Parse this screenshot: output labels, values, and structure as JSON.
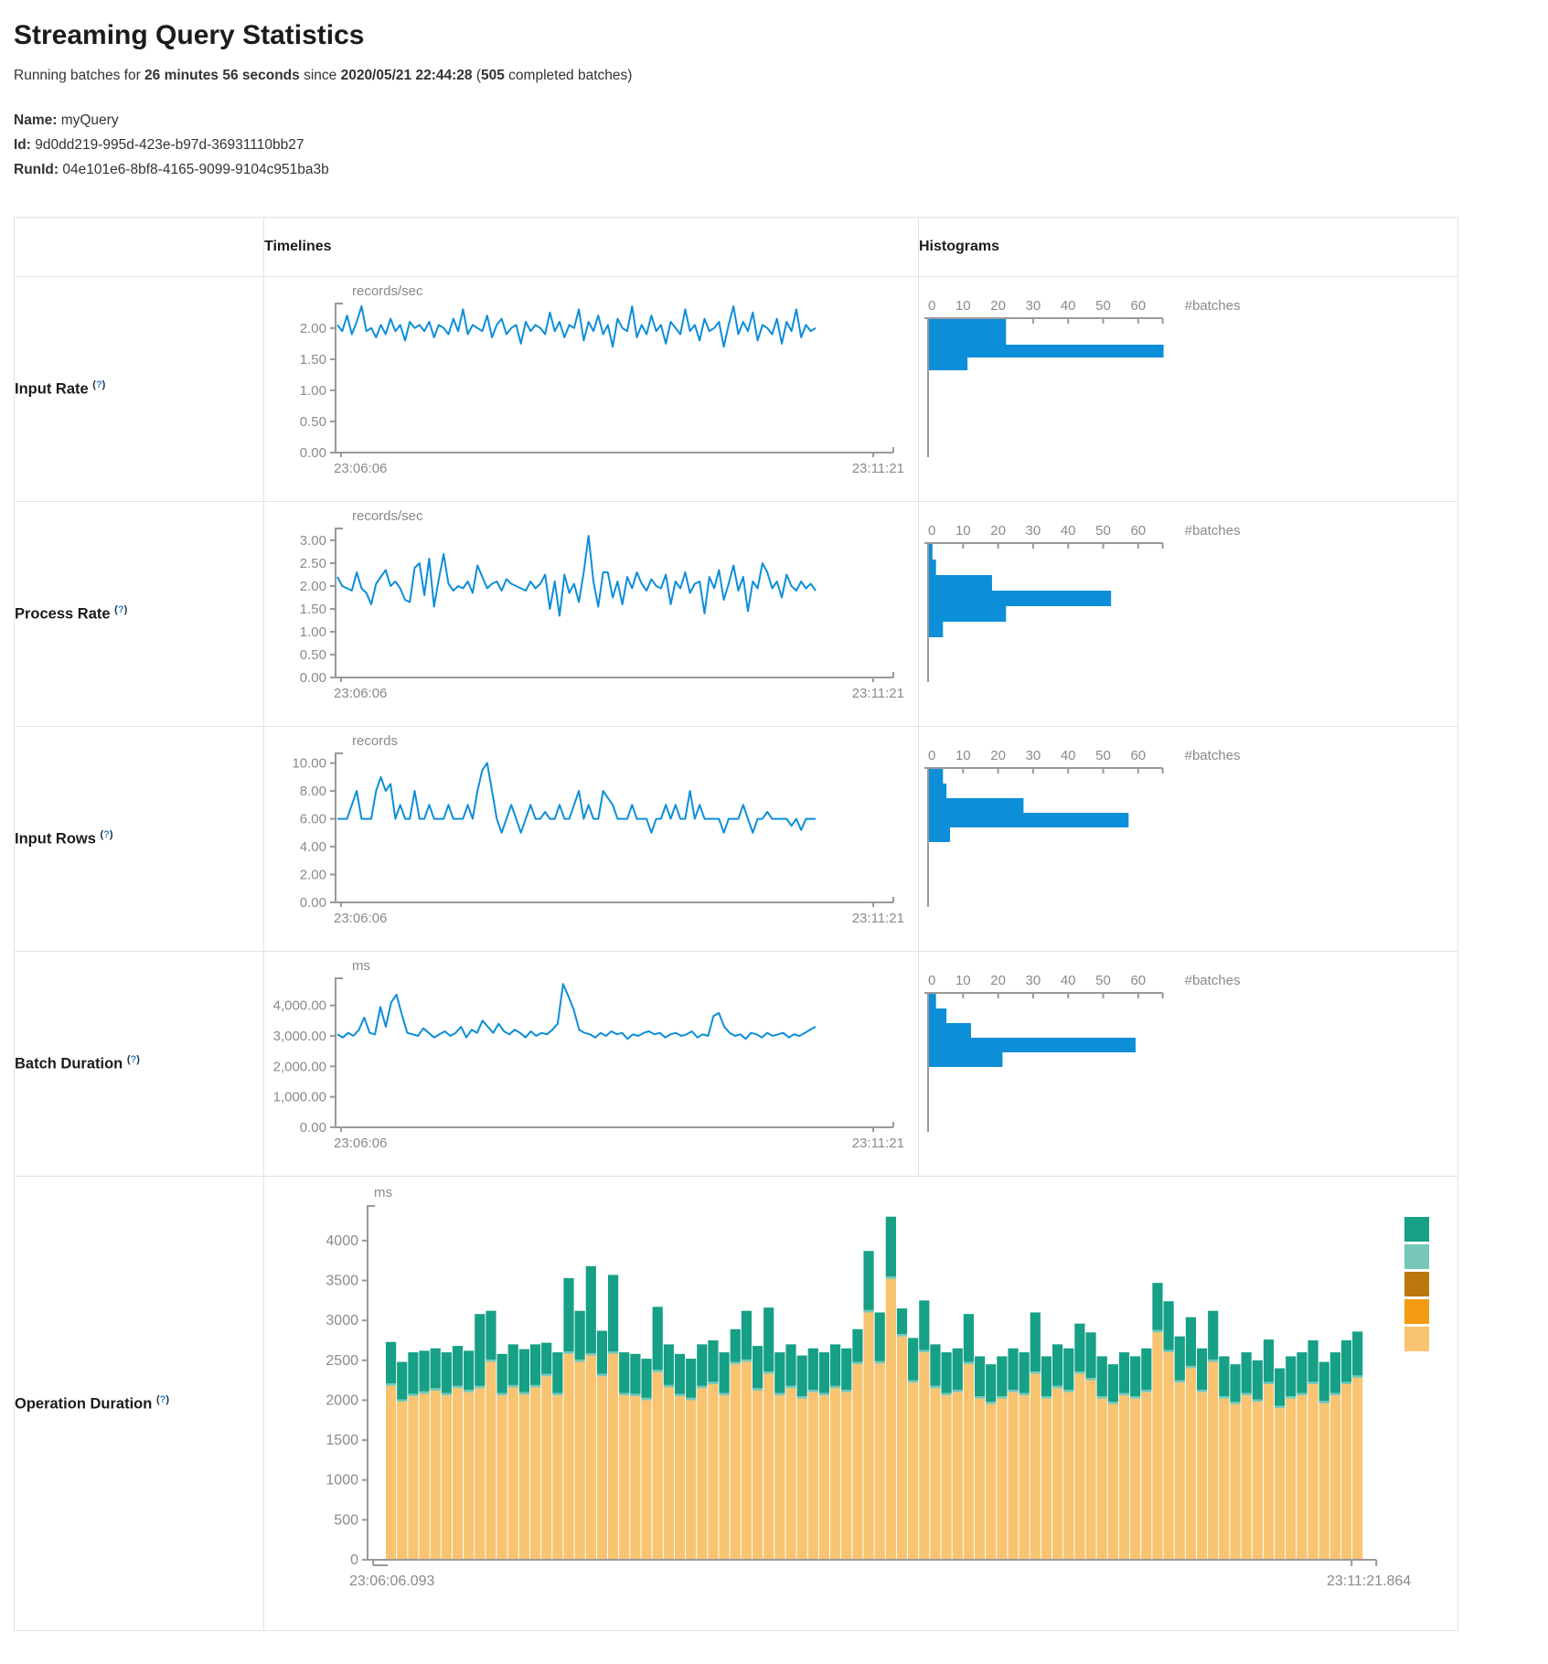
{
  "page": {
    "title": "Streaming Query Statistics",
    "subtitle_segments": [
      [
        "Running batches for ",
        false
      ],
      [
        "26 minutes 56 seconds",
        true
      ],
      [
        " since ",
        false
      ],
      [
        "2020/05/21 22:44:28",
        true
      ],
      [
        " (",
        false
      ],
      [
        "505",
        true
      ],
      [
        " completed batches)",
        false
      ]
    ],
    "info": {
      "name_label": "Name:",
      "name_value": "myQuery",
      "id_label": "Id:",
      "id_value": "9d0dd219-995d-423e-b97d-36931110bb27",
      "runid_label": "RunId:",
      "runid_value": "04e101e6-8bf8-4165-9099-9104c951ba3b"
    }
  },
  "table": {
    "col_timelines": "Timelines",
    "col_histograms": "Histograms",
    "help_open": "(",
    "help_q": "?",
    "help_close": ")",
    "rows": [
      {
        "label": "Input Rate"
      },
      {
        "label": "Process Rate"
      },
      {
        "label": "Input Rows"
      },
      {
        "label": "Batch Duration"
      },
      {
        "label": "Operation Duration"
      }
    ]
  },
  "colors": {
    "line_blue": "#0d8ed9",
    "bar_blue": "#0d8ed9",
    "axis_gray": "#999999",
    "tick_text": "#8a8a8a",
    "help_blue": "#2e86d1",
    "legend": [
      "#16a085",
      "#76c7b7",
      "#b9770e",
      "#f39c12",
      "#f8c471"
    ],
    "stack_base": "#f8c471",
    "stack_sliver": "#76c7b7",
    "stack_top": "#16a085"
  },
  "chart_data": [
    {
      "id": "input_rate_timeline",
      "type": "line",
      "title": "Input Rate timeline",
      "ylabel": "records/sec",
      "x_start_label": "23:06:06",
      "x_end_label": "23:11:21",
      "ymax": 2.35,
      "yticks": [
        2,
        1.5,
        1,
        0.5,
        0
      ],
      "ytick_labels": [
        "2.00",
        "1.50",
        "1.00",
        "0.50",
        "0.00"
      ],
      "values": [
        2.05,
        1.95,
        2.2,
        1.9,
        2.1,
        2.35,
        1.95,
        2.0,
        1.85,
        2.05,
        1.9,
        2.15,
        1.95,
        2.05,
        1.8,
        2.1,
        2.0,
        2.05,
        1.95,
        2.1,
        1.85,
        2.05,
        2.0,
        1.9,
        2.15,
        1.95,
        2.3,
        1.9,
        2.05,
        2.0,
        1.95,
        2.2,
        1.85,
        2.05,
        2.15,
        1.9,
        2.0,
        2.05,
        1.75,
        2.1,
        1.95,
        2.05,
        2.0,
        1.9,
        2.25,
        1.95,
        2.1,
        1.85,
        2.05,
        2.0,
        2.3,
        1.8,
        2.1,
        1.95,
        2.2,
        1.9,
        2.05,
        1.7,
        2.15,
        2.0,
        1.95,
        2.35,
        1.85,
        2.05,
        1.9,
        2.2,
        1.95,
        2.05,
        1.75,
        2.1,
        2.0,
        1.9,
        2.3,
        1.95,
        2.05,
        1.8,
        2.15,
        1.95,
        2.0,
        2.1,
        1.7,
        2.05,
        2.35,
        1.9,
        2.1,
        1.95,
        2.25,
        1.8,
        2.05,
        2.0,
        1.9,
        2.15,
        1.75,
        2.1,
        1.95,
        2.3,
        1.85,
        2.05,
        1.95,
        2.0
      ]
    },
    {
      "id": "input_rate_histogram",
      "type": "bar",
      "orientation": "horizontal",
      "title": "Input Rate histogram",
      "xlabel": "#batches",
      "xticks": [
        0,
        10,
        20,
        30,
        40,
        50,
        60
      ],
      "xmax": 67,
      "counts": [
        22,
        67,
        11
      ],
      "bin_heights": [
        28,
        14,
        14
      ]
    },
    {
      "id": "process_rate_timeline",
      "type": "line",
      "title": "Process Rate timeline",
      "ylabel": "records/sec",
      "x_start_label": "23:06:06",
      "x_end_label": "23:11:21",
      "ymax": 3.2,
      "yticks": [
        3,
        2.5,
        2,
        1.5,
        1,
        0.5,
        0
      ],
      "ytick_labels": [
        "3.00",
        "2.50",
        "2.00",
        "1.50",
        "1.00",
        "0.50",
        "0.00"
      ],
      "values": [
        2.2,
        2.0,
        1.95,
        1.9,
        2.3,
        1.95,
        1.85,
        1.6,
        2.05,
        2.2,
        2.35,
        2.0,
        2.1,
        1.95,
        1.7,
        1.65,
        2.4,
        2.5,
        1.8,
        2.6,
        1.55,
        2.15,
        2.7,
        2.05,
        1.9,
        2.0,
        1.95,
        2.1,
        1.85,
        2.45,
        2.2,
        1.95,
        2.05,
        2.1,
        1.9,
        2.15,
        2.05,
        2.0,
        1.95,
        1.9,
        2.1,
        1.95,
        2.05,
        2.25,
        1.5,
        2.1,
        1.35,
        2.25,
        1.85,
        2.05,
        1.65,
        2.3,
        3.1,
        2.1,
        1.55,
        2.3,
        2.3,
        1.75,
        2.1,
        1.6,
        2.2,
        1.95,
        2.3,
        2.05,
        1.9,
        2.15,
        2.0,
        1.95,
        2.25,
        1.6,
        2.1,
        1.95,
        2.3,
        1.85,
        2.05,
        2.1,
        1.4,
        2.2,
        1.95,
        2.35,
        1.7,
        2.05,
        2.45,
        1.9,
        2.2,
        1.45,
        2.1,
        1.95,
        2.5,
        2.3,
        1.95,
        2.1,
        1.75,
        2.25,
        2.0,
        1.9,
        2.1,
        1.95,
        2.05,
        1.9
      ]
    },
    {
      "id": "process_rate_histogram",
      "type": "bar",
      "orientation": "horizontal",
      "title": "Process Rate histogram",
      "xlabel": "#batches",
      "xticks": [
        0,
        10,
        20,
        30,
        40,
        50,
        60
      ],
      "xmax": 67,
      "counts": [
        1,
        2,
        18,
        52,
        22,
        4
      ],
      "bin_heights": [
        17,
        17,
        17,
        17,
        17,
        17
      ]
    },
    {
      "id": "input_rows_timeline",
      "type": "line",
      "title": "Input Rows timeline",
      "ylabel": "records",
      "x_start_label": "23:06:06",
      "x_end_label": "23:11:21",
      "ymax": 10.5,
      "yticks": [
        10,
        8,
        6,
        4,
        2,
        0
      ],
      "ytick_labels": [
        "10.00",
        "8.00",
        "6.00",
        "4.00",
        "2.00",
        "0.00"
      ],
      "values": [
        6,
        6,
        6,
        7,
        8,
        6,
        6,
        6,
        8,
        9,
        8,
        8.5,
        6,
        7,
        6,
        6,
        8,
        6,
        6,
        7,
        6,
        6,
        6,
        7,
        6,
        6,
        6,
        7,
        6,
        8,
        9.5,
        10,
        8,
        6,
        5,
        6,
        7,
        6,
        5,
        6,
        7,
        6,
        6,
        6.5,
        6,
        6,
        7,
        6,
        6,
        7,
        8,
        6,
        7,
        6,
        6,
        8,
        7.5,
        7,
        6,
        6,
        6,
        7,
        6,
        6,
        6,
        5,
        6,
        6,
        7,
        6,
        7,
        6,
        6,
        8,
        6,
        7,
        6,
        6,
        6,
        6,
        5,
        6,
        6,
        6,
        7,
        6,
        5,
        6,
        6,
        6.5,
        6,
        6,
        6,
        6,
        5.5,
        6,
        5.2,
        6,
        6,
        6
      ]
    },
    {
      "id": "input_rows_histogram",
      "type": "bar",
      "orientation": "horizontal",
      "title": "Input Rows histogram",
      "xlabel": "#batches",
      "xticks": [
        0,
        10,
        20,
        30,
        40,
        50,
        60
      ],
      "xmax": 67,
      "counts": [
        4,
        5,
        27,
        57,
        6
      ],
      "bin_heights": [
        16,
        16,
        16,
        16,
        16
      ]
    },
    {
      "id": "batch_duration_timeline",
      "type": "line",
      "title": "Batch Duration timeline",
      "ylabel": "ms",
      "x_start_label": "23:06:06",
      "x_end_label": "23:11:21",
      "ymax": 4800,
      "yticks": [
        4000,
        3000,
        2000,
        1000,
        0
      ],
      "ytick_labels": [
        "4,000.00",
        "3,000.00",
        "2,000.00",
        "1,000.00",
        "0.00"
      ],
      "values": [
        3050,
        2950,
        3100,
        3000,
        3200,
        3600,
        3100,
        3050,
        3950,
        3300,
        4100,
        4350,
        3700,
        3100,
        3050,
        3000,
        3250,
        3100,
        2950,
        3050,
        3150,
        3000,
        3100,
        3300,
        2950,
        3200,
        3100,
        3500,
        3300,
        3100,
        3400,
        3150,
        3050,
        3200,
        3100,
        2950,
        3150,
        3000,
        3100,
        3050,
        3200,
        3400,
        4700,
        4300,
        3850,
        3200,
        3100,
        3050,
        2950,
        3100,
        3000,
        3150,
        3050,
        3100,
        2900,
        3050,
        3000,
        3100,
        3150,
        3050,
        3100,
        2950,
        3050,
        3100,
        3000,
        3050,
        3150,
        2950,
        3050,
        3000,
        3650,
        3750,
        3300,
        3100,
        3000,
        3050,
        2900,
        3100,
        3050,
        2950,
        3100,
        3000,
        3050,
        3100,
        2950,
        3050,
        3000,
        3100,
        3200,
        3300
      ]
    },
    {
      "id": "batch_duration_histogram",
      "type": "bar",
      "orientation": "horizontal",
      "title": "Batch Duration histogram",
      "xlabel": "#batches",
      "xticks": [
        0,
        10,
        20,
        30,
        40,
        50,
        60
      ],
      "xmax": 67,
      "counts": [
        2,
        5,
        12,
        59,
        21
      ],
      "bin_heights": [
        16,
        16,
        16,
        16,
        16
      ]
    },
    {
      "id": "operation_duration_chart",
      "type": "stacked-bar",
      "title": "Operation Duration",
      "ylabel": "ms",
      "x_start_label": "23:06:06.093",
      "x_end_label": "23:11:21.864",
      "ymax": 4400,
      "yticks": [
        4000,
        3500,
        3000,
        2500,
        2000,
        1500,
        1000,
        500,
        0
      ],
      "ytick_labels": [
        "4000",
        "3500",
        "3000",
        "2500",
        "2000",
        "1500",
        "1000",
        "500",
        "0"
      ],
      "legend_colors": [
        "#16a085",
        "#76c7b7",
        "#b9770e",
        "#f39c12",
        "#f8c471"
      ],
      "sliver_value": 30,
      "series": [
        {
          "name": "base-light-orange",
          "values": [
            2180,
            1980,
            2050,
            2080,
            2120,
            2060,
            2150,
            2100,
            2150,
            2480,
            2060,
            2160,
            2070,
            2160,
            2300,
            2060,
            2580,
            2480,
            2560,
            2300,
            2580,
            2060,
            2050,
            2000,
            2350,
            2160,
            2050,
            2000,
            2150,
            2200,
            2060,
            2450,
            2480,
            2120,
            2330,
            2060,
            2150,
            2020,
            2100,
            2060,
            2150,
            2100,
            2450,
            3100,
            2460,
            3520,
            2800,
            2220,
            2600,
            2150,
            2060,
            2100,
            2450,
            2020,
            1950,
            2020,
            2100,
            2060,
            2330,
            2020,
            2150,
            2100,
            2330,
            2250,
            2020,
            1950,
            2060,
            2020,
            2100,
            2850,
            2600,
            2220,
            2400,
            2100,
            2480,
            2020,
            1950,
            2060,
            1980,
            2200,
            1900,
            2020,
            2060,
            2200,
            1960,
            2060,
            2200,
            2280
          ]
        },
        {
          "name": "total",
          "values": [
            2730,
            2480,
            2600,
            2620,
            2650,
            2600,
            2680,
            2620,
            3080,
            3120,
            2580,
            2700,
            2640,
            2700,
            2720,
            2600,
            3530,
            3120,
            3680,
            2870,
            3570,
            2600,
            2580,
            2520,
            3170,
            2700,
            2580,
            2520,
            2700,
            2750,
            2600,
            2890,
            3120,
            2680,
            3160,
            2600,
            2700,
            2560,
            2650,
            2600,
            2700,
            2650,
            2890,
            3870,
            3100,
            4300,
            3150,
            2780,
            3250,
            2700,
            2600,
            2650,
            3080,
            2550,
            2450,
            2550,
            2650,
            2600,
            3100,
            2550,
            2700,
            2650,
            2960,
            2850,
            2550,
            2450,
            2600,
            2550,
            2650,
            3470,
            3240,
            2800,
            3040,
            2650,
            3120,
            2550,
            2450,
            2600,
            2500,
            2760,
            2400,
            2550,
            2600,
            2750,
            2480,
            2600,
            2750,
            2860
          ]
        }
      ]
    }
  ]
}
